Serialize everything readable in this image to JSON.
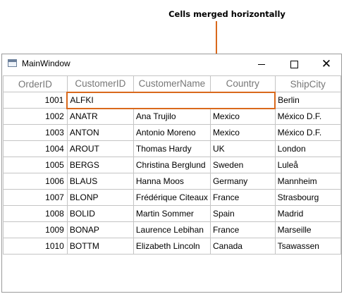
{
  "annotation": {
    "text": "Cells merged horizontally"
  },
  "window": {
    "title": "MainWindow",
    "controls": {
      "minimize": "",
      "maximize": "",
      "close": "✕"
    }
  },
  "grid": {
    "columns": [
      "OrderID",
      "CustomerID",
      "CustomerName",
      "Country",
      "ShipCity"
    ],
    "rows": [
      {
        "order_id": "1001",
        "customer_id": "ALFKI",
        "customer_name": "",
        "country": "",
        "ship_city": "Berlin",
        "merged": true
      },
      {
        "order_id": "1002",
        "customer_id": "ANATR",
        "customer_name": "Ana Trujilo",
        "country": "Mexico",
        "ship_city": "México D.F."
      },
      {
        "order_id": "1003",
        "customer_id": "ANTON",
        "customer_name": "Antonio Moreno",
        "country": "Mexico",
        "ship_city": "México D.F."
      },
      {
        "order_id": "1004",
        "customer_id": "AROUT",
        "customer_name": "Thomas Hardy",
        "country": "UK",
        "ship_city": "London"
      },
      {
        "order_id": "1005",
        "customer_id": "BERGS",
        "customer_name": "Christina Berglund",
        "country": "Sweden",
        "ship_city": "Luleå"
      },
      {
        "order_id": "1006",
        "customer_id": "BLAUS",
        "customer_name": "Hanna Moos",
        "country": "Germany",
        "ship_city": "Mannheim"
      },
      {
        "order_id": "1007",
        "customer_id": "BLONP",
        "customer_name": "Frédérique Citeaux",
        "country": "France",
        "ship_city": "Strasbourg"
      },
      {
        "order_id": "1008",
        "customer_id": "BOLID",
        "customer_name": "Martin Sommer",
        "country": "Spain",
        "ship_city": "Madrid"
      },
      {
        "order_id": "1009",
        "customer_id": "BONAP",
        "customer_name": "Laurence Lebihan",
        "country": "France",
        "ship_city": "Marseille"
      },
      {
        "order_id": "1010",
        "customer_id": "BOTTM",
        "customer_name": "Elizabeth Lincoln",
        "country": "Canada",
        "ship_city": "Tsawassen"
      }
    ]
  },
  "colors": {
    "accent": "#d9691c",
    "grid_line": "#c4c4c4",
    "header_text": "#777777"
  }
}
